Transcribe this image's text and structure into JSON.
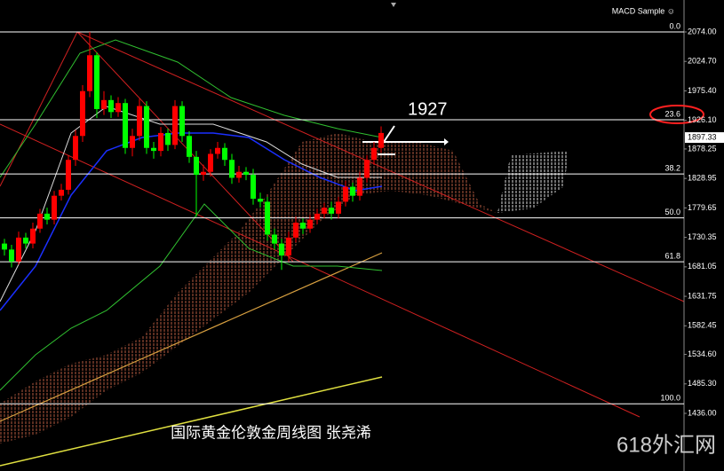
{
  "chart_data": {
    "type": "candlestick",
    "indicator_label": "MACD Sample ☺",
    "annotation": "1927",
    "caption": "国际黄金伦敦金周线图 张尧浠",
    "watermark": "618外汇网",
    "up_color": "#ff0000",
    "down_color": "#00ff00",
    "open": [
      1720,
      1710,
      1690,
      1730,
      1720,
      1745,
      1770,
      1760,
      1800,
      1810,
      1860,
      1900,
      1975,
      2035,
      1945,
      1960,
      1940,
      1955,
      1880,
      1900,
      1950,
      1880,
      1875,
      1905,
      1885,
      1950,
      1900,
      1865,
      1835,
      1840,
      1870,
      1880,
      1860,
      1830,
      1840,
      1835,
      1795,
      1790,
      1735,
      1720,
      1700,
      1730,
      1755,
      1745,
      1760,
      1770,
      1780,
      1770,
      1790,
      1815,
      1800,
      1830,
      1860,
      1880
    ],
    "high": [
      1728,
      1718,
      1740,
      1738,
      1755,
      1778,
      1780,
      1808,
      1820,
      1868,
      1910,
      1985,
      2074,
      2040,
      1975,
      1968,
      1965,
      1962,
      1912,
      1962,
      1958,
      1890,
      1915,
      1912,
      1960,
      1958,
      1908,
      1875,
      1852,
      1878,
      1890,
      1888,
      1870,
      1850,
      1848,
      1845,
      1805,
      1798,
      1745,
      1728,
      1740,
      1765,
      1762,
      1768,
      1778,
      1788,
      1790,
      1798,
      1825,
      1822,
      1840,
      1868,
      1890,
      1916
    ],
    "low": [
      1700,
      1680,
      1685,
      1712,
      1712,
      1738,
      1752,
      1752,
      1792,
      1802,
      1850,
      1890,
      1965,
      1930,
      1935,
      1930,
      1932,
      1870,
      1866,
      1892,
      1870,
      1862,
      1866,
      1875,
      1878,
      1890,
      1855,
      1765,
      1825,
      1832,
      1862,
      1850,
      1820,
      1822,
      1826,
      1785,
      1780,
      1725,
      1710,
      1676,
      1690,
      1722,
      1736,
      1738,
      1752,
      1762,
      1760,
      1762,
      1782,
      1790,
      1792,
      1822,
      1852,
      1872
    ],
    "close": [
      1710,
      1690,
      1730,
      1720,
      1745,
      1770,
      1760,
      1800,
      1810,
      1860,
      1900,
      1975,
      2035,
      1945,
      1960,
      1940,
      1955,
      1880,
      1900,
      1950,
      1880,
      1875,
      1905,
      1885,
      1950,
      1900,
      1865,
      1835,
      1840,
      1870,
      1880,
      1860,
      1830,
      1840,
      1835,
      1795,
      1790,
      1735,
      1720,
      1700,
      1730,
      1755,
      1745,
      1760,
      1770,
      1780,
      1770,
      1790,
      1815,
      1800,
      1830,
      1860,
      1880,
      1905
    ],
    "ylim": [
      1339.6,
      2127.4
    ],
    "yticks": [
      {
        "value": 2074.0,
        "label": "2074.00"
      },
      {
        "value": 2024.7,
        "label": "2024.70"
      },
      {
        "value": 1975.4,
        "label": "1975.40"
      },
      {
        "value": 1926.1,
        "label": "1926.10"
      },
      {
        "value": 1878.25,
        "label": "1878.25"
      },
      {
        "value": 1828.95,
        "label": "1828.95"
      },
      {
        "value": 1779.65,
        "label": "1779.65"
      },
      {
        "value": 1730.35,
        "label": "1730.35"
      },
      {
        "value": 1681.05,
        "label": "1681.05"
      },
      {
        "value": 1631.75,
        "label": "1631.75"
      },
      {
        "value": 1582.45,
        "label": "1582.45"
      },
      {
        "value": 1534.6,
        "label": "1534.60"
      },
      {
        "value": 1485.3,
        "label": "1485.30"
      },
      {
        "value": 1436.0,
        "label": "1436.00"
      }
    ],
    "current_price": {
      "value": 1897.33,
      "label": "1897.33"
    },
    "fib_levels": [
      {
        "label": "0.0",
        "value": 2074
      },
      {
        "label": "23.6",
        "value": 1927.2
      },
      {
        "label": "38.2",
        "value": 1836.4
      },
      {
        "label": "50.0",
        "value": 1763
      },
      {
        "label": "61.8",
        "value": 1689.6
      },
      {
        "label": "100.0",
        "value": 1452
      }
    ]
  }
}
